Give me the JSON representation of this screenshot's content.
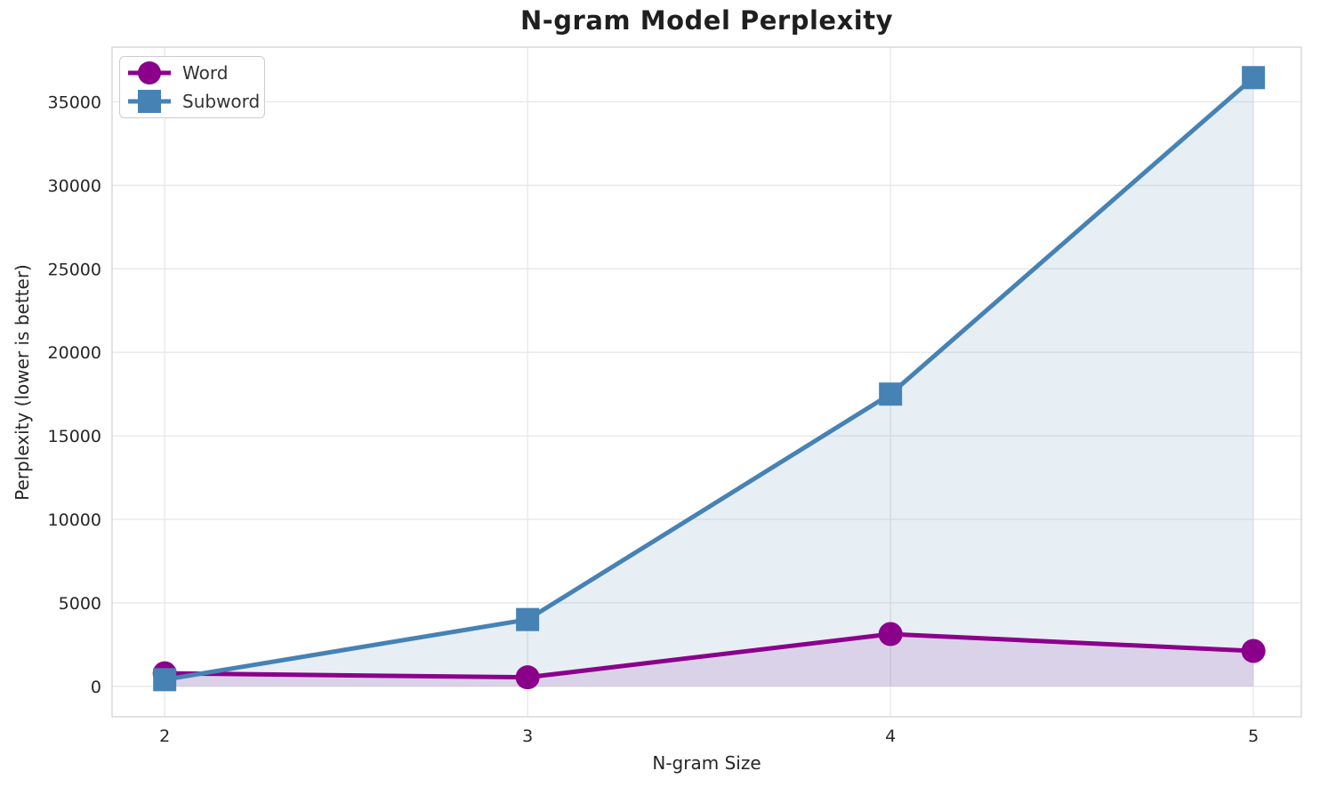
{
  "chart_data": {
    "type": "line",
    "title": "N-gram Model Perplexity",
    "xlabel": "N-gram Size",
    "ylabel": "Perplexity (lower is better)",
    "x": [
      2,
      3,
      4,
      5
    ],
    "series": [
      {
        "name": "Word",
        "color": "#8B008B",
        "marker": "circle",
        "values": [
          780,
          540,
          3130,
          2120
        ]
      },
      {
        "name": "Subword",
        "color": "#4682B4",
        "marker": "square",
        "values": [
          400,
          4000,
          17500,
          36450
        ]
      }
    ],
    "fill_to_zero": true,
    "fill_alpha": 0.13,
    "xticks": [
      2,
      3,
      4,
      5
    ],
    "yticks": [
      0,
      5000,
      10000,
      15000,
      20000,
      25000,
      30000,
      35000
    ],
    "xlim": [
      1.855,
      5.132
    ],
    "ylim": [
      -1821,
      38276
    ],
    "grid": true,
    "legend_position": "upper-left",
    "colors": {
      "grid": "#e7e7e7",
      "spine": "#d5d5d5",
      "text": "#262626",
      "background": "#ffffff"
    },
    "line_width": 5,
    "marker_size": 27
  }
}
